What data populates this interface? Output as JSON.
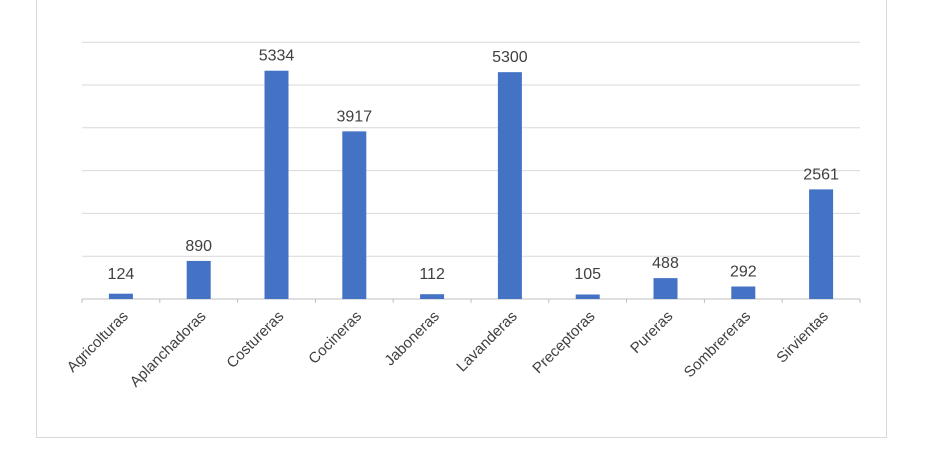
{
  "chart_data": {
    "type": "bar",
    "categories": [
      "Agricolturas",
      "Aplanchadoras",
      "Costureras",
      "Cocineras",
      "Jaboneras",
      "Lavanderas",
      "Preceptoras",
      "Pureras",
      "Sombrereras",
      "Sirvientas"
    ],
    "values": [
      124,
      890,
      5334,
      3917,
      112,
      5300,
      105,
      488,
      292,
      2561
    ],
    "title": "",
    "xlabel": "",
    "ylabel": "",
    "ylim": [
      0,
      6000
    ],
    "grid": true,
    "legend": "none",
    "bar_color": "#4472c4",
    "grid_color": "#d9d9d9",
    "label_color": "#404040"
  }
}
